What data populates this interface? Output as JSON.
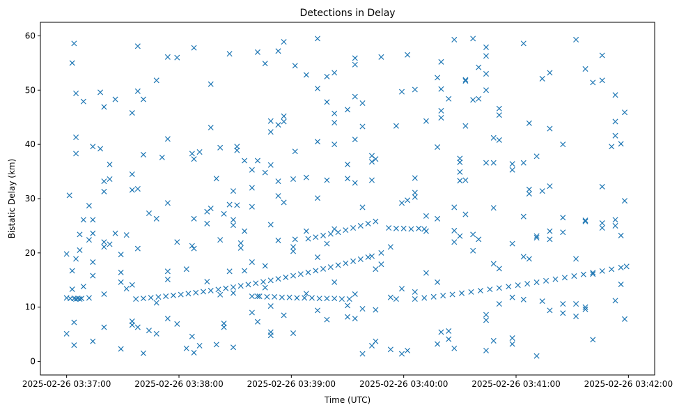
{
  "chart_data": {
    "type": "scatter",
    "title": "Detections in Delay",
    "xlabel": "Time (UTC)",
    "ylabel": "Bistatic Delay (km)",
    "x_units": "seconds after 2025-02-26 03:37:00",
    "xlim": [
      -14,
      314
    ],
    "ylim": [
      -2.5,
      62.5
    ],
    "grid": false,
    "marker": "x",
    "color": "#1f77b4",
    "x_ticks": [
      {
        "value": 0,
        "label": "2025-02-26 03:37:00"
      },
      {
        "value": 60,
        "label": "2025-02-26 03:38:00"
      },
      {
        "value": 120,
        "label": "2025-02-26 03:39:00"
      },
      {
        "value": 180,
        "label": "2025-02-26 03:40:00"
      },
      {
        "value": 240,
        "label": "2025-02-26 03:41:00"
      },
      {
        "value": 300,
        "label": "2025-02-26 03:42:00"
      }
    ],
    "y_ticks": [
      {
        "value": 0,
        "label": "0"
      },
      {
        "value": 10,
        "label": "10"
      },
      {
        "value": 20,
        "label": "20"
      },
      {
        "value": 30,
        "label": "30"
      },
      {
        "value": 40,
        "label": "40"
      },
      {
        "value": 50,
        "label": "50"
      },
      {
        "value": 60,
        "label": "60"
      }
    ],
    "track_points": [
      [
        0,
        11.7
      ],
      [
        2,
        11.6
      ],
      [
        4,
        11.6
      ],
      [
        5,
        11.5
      ],
      [
        6,
        11.6
      ],
      [
        7,
        11.5
      ],
      [
        8,
        11.6
      ],
      [
        37,
        11.5
      ],
      [
        41,
        11.61
      ],
      [
        45,
        11.74
      ],
      [
        49,
        11.87
      ],
      [
        53,
        12.01
      ],
      [
        57,
        12.16
      ],
      [
        61,
        12.32
      ],
      [
        65,
        12.49
      ],
      [
        69,
        12.67
      ],
      [
        73,
        12.86
      ],
      [
        77,
        13.05
      ],
      [
        81,
        13.25
      ],
      [
        85,
        13.47
      ],
      [
        89,
        13.69
      ],
      [
        93,
        13.92
      ],
      [
        97,
        14.16
      ],
      [
        101,
        14.41
      ],
      [
        105,
        14.67
      ],
      [
        109,
        14.93
      ],
      [
        113,
        15.21
      ],
      [
        117,
        15.49
      ],
      [
        121,
        15.79
      ],
      [
        125,
        16.09
      ],
      [
        129,
        16.4
      ],
      [
        133,
        16.72
      ],
      [
        137,
        17.05
      ],
      [
        141,
        17.39
      ],
      [
        145,
        17.74
      ],
      [
        149,
        18.09
      ],
      [
        153,
        18.46
      ],
      [
        157,
        18.83
      ],
      [
        161,
        19.21
      ],
      [
        163,
        19.4
      ],
      [
        129,
        22.6
      ],
      [
        133,
        22.9
      ],
      [
        137,
        23.2
      ],
      [
        141,
        23.5
      ],
      [
        145,
        23.8
      ],
      [
        149,
        24.2
      ],
      [
        153,
        24.6
      ],
      [
        157,
        25.0
      ],
      [
        161,
        25.4
      ],
      [
        165,
        25.8
      ],
      [
        172,
        24.6
      ],
      [
        176,
        24.5
      ],
      [
        180,
        24.5
      ],
      [
        184,
        24.4
      ],
      [
        188,
        24.5
      ],
      [
        191,
        24.4
      ],
      [
        99,
        12.0
      ],
      [
        103,
        12.0
      ],
      [
        107,
        11.9
      ],
      [
        111,
        11.9
      ],
      [
        115,
        11.8
      ],
      [
        119,
        11.8
      ],
      [
        123,
        11.7
      ],
      [
        127,
        11.7
      ],
      [
        131,
        11.7
      ],
      [
        135,
        11.6
      ],
      [
        139,
        11.6
      ],
      [
        143,
        11.6
      ],
      [
        147,
        11.5
      ],
      [
        151,
        11.5
      ],
      [
        186,
        11.5
      ],
      [
        191,
        11.7
      ],
      [
        196,
        11.91
      ],
      [
        201,
        12.12
      ],
      [
        206,
        12.34
      ],
      [
        211,
        12.57
      ],
      [
        216,
        12.8
      ],
      [
        221,
        13.04
      ],
      [
        226,
        13.28
      ],
      [
        231,
        13.53
      ],
      [
        236,
        13.78
      ],
      [
        241,
        14.05
      ],
      [
        246,
        14.31
      ],
      [
        251,
        14.58
      ],
      [
        256,
        14.86
      ],
      [
        261,
        15.15
      ],
      [
        266,
        15.44
      ],
      [
        271,
        15.73
      ],
      [
        276,
        16.03
      ],
      [
        281,
        16.35
      ],
      [
        286,
        16.66
      ],
      [
        291,
        16.98
      ],
      [
        296,
        17.3
      ],
      [
        299,
        17.5
      ]
    ],
    "scatter_columns": [
      [
        0,
        [
          19.8,
          5.1
        ]
      ],
      [
        1.5,
        [
          30.6
        ]
      ],
      [
        3,
        [
          55,
          16.7,
          13.3
        ]
      ],
      [
        4,
        [
          58.6,
          7.2,
          3.0
        ]
      ],
      [
        5,
        [
          49.4,
          41.3,
          38.3,
          18.9
        ]
      ],
      [
        7,
        [
          20.5,
          23.4
        ]
      ],
      [
        9,
        [
          47.9,
          26.1,
          13.8
        ]
      ],
      [
        12,
        [
          28.7,
          22.4,
          11.7
        ]
      ],
      [
        14,
        [
          39.6,
          26.1,
          23.6,
          18.3,
          15.8,
          3.7
        ]
      ],
      [
        18,
        [
          39.2,
          49.6
        ]
      ],
      [
        20,
        [
          46.9,
          33.2,
          31.3,
          22,
          21.1,
          6.3,
          12.4
        ]
      ],
      [
        23,
        [
          36.3,
          33.6,
          21.6
        ]
      ],
      [
        26,
        [
          48.3,
          23.6
        ]
      ],
      [
        29,
        [
          19.7,
          16.4,
          14.6,
          2.3
        ]
      ],
      [
        32,
        [
          23.3,
          13.4
        ]
      ],
      [
        35,
        [
          45.8,
          34.5,
          31.6,
          14.1,
          7.4,
          6.7
        ]
      ],
      [
        38,
        [
          58.1,
          31.8,
          49.8,
          20.8,
          6.3
        ]
      ],
      [
        41,
        [
          48.3,
          38.1,
          1.5
        ]
      ],
      [
        44,
        [
          27.3,
          5.7
        ]
      ],
      [
        48,
        [
          51.8,
          26.3,
          5.1,
          10.8
        ]
      ],
      [
        51,
        [
          37.6
        ]
      ],
      [
        54,
        [
          56.1,
          41.0,
          29.2,
          16.6,
          15.1,
          7.9
        ]
      ],
      [
        59,
        [
          56.0,
          22.0,
          6.9
        ]
      ],
      [
        64,
        [
          17.0,
          2.4
        ]
      ],
      [
        67,
        [
          38.3,
          21.3,
          4.6
        ]
      ],
      [
        68,
        [
          57.8,
          37.3,
          26.3,
          20.8,
          1.6
        ]
      ],
      [
        71,
        [
          38.6,
          2.9
        ]
      ],
      [
        75,
        [
          27.6,
          25.4,
          14.7
        ]
      ],
      [
        77,
        [
          51.1,
          28.2,
          43.1
        ]
      ],
      [
        80,
        [
          33.7,
          3.1
        ]
      ],
      [
        82,
        [
          39.4,
          22.4,
          12.3
        ]
      ],
      [
        84,
        [
          27.2,
          7.0,
          6.3
        ]
      ],
      [
        87,
        [
          56.7,
          28.9,
          16.6
        ]
      ],
      [
        89,
        [
          31.4,
          26.1,
          25.1,
          12.6,
          2.6
        ]
      ],
      [
        91,
        [
          39.6,
          28.8,
          38.9
        ]
      ],
      [
        93,
        [
          21.8,
          20.9
        ]
      ],
      [
        95,
        [
          37.0,
          24.0,
          16.7
        ]
      ],
      [
        99,
        [
          35.3,
          32.0,
          28.5,
          18.3,
          9.0
        ]
      ],
      [
        102,
        [
          57.0,
          37.0,
          12.0,
          7.3
        ]
      ],
      [
        106,
        [
          54.9,
          34.8,
          17.6,
          13.6
        ]
      ],
      [
        109,
        [
          44.3,
          42.3,
          36.2,
          25.2,
          10.2,
          5.4,
          4.8
        ]
      ],
      [
        113,
        [
          57.2,
          43.6,
          30.5,
          33.2,
          22.3
        ]
      ],
      [
        116,
        [
          58.9,
          45.2,
          44.2,
          29.3,
          8.5
        ]
      ],
      [
        121,
        [
          33.6,
          20.3,
          21.1,
          5.2
        ]
      ],
      [
        122,
        [
          54.5,
          38.7,
          22.5
        ]
      ],
      [
        128,
        [
          52.8,
          33.9,
          24.0,
          12.5
        ]
      ],
      [
        134,
        [
          59.5,
          50.3,
          40.5,
          30.1,
          9.4,
          19.2
        ]
      ],
      [
        139,
        [
          52.5,
          47.8,
          33.4,
          21.7,
          7.7
        ]
      ],
      [
        143,
        [
          53.2,
          45.7,
          44.0,
          40.0,
          24.4,
          14.6
        ]
      ],
      [
        150,
        [
          46.4,
          36.3,
          33.7,
          8.2,
          10.3
        ]
      ],
      [
        154,
        [
          55.9,
          54.7,
          48.8,
          40.9,
          32.9,
          12.4,
          7.9
        ]
      ],
      [
        158,
        [
          47.6,
          43.3,
          28.4,
          9.7,
          1.4
        ]
      ],
      [
        163,
        [
          37.9,
          36.8,
          33.4,
          2.9
        ]
      ],
      [
        165,
        [
          37.3,
          17.0,
          3.7,
          9.5
        ]
      ],
      [
        168,
        [
          56.1,
          20.0,
          17.9
        ]
      ],
      [
        173,
        [
          2.2,
          11.8,
          21.1
        ]
      ],
      [
        176,
        [
          43.4,
          11.5
        ]
      ],
      [
        179,
        [
          49.7,
          29.2,
          13.4,
          1.4
        ]
      ],
      [
        182,
        [
          56.5,
          29.7,
          2.0
        ]
      ],
      [
        186,
        [
          50.1,
          31.1,
          33.8,
          30.3,
          12.8
        ]
      ],
      [
        192,
        [
          44.3,
          26.8,
          16.3,
          24.0
        ]
      ],
      [
        198,
        [
          39.5,
          52.3,
          26.3,
          14.6,
          3.2
        ]
      ],
      [
        200,
        [
          55.2,
          50.2,
          46.2,
          44.9,
          5.4
        ]
      ],
      [
        204,
        [
          48.4,
          4.1,
          5.6
        ]
      ],
      [
        207,
        [
          59.3,
          28.4,
          24.1,
          22.0,
          2.4
        ]
      ],
      [
        210,
        [
          37.4,
          36.7,
          34.9,
          33.3,
          23.1
        ]
      ],
      [
        213,
        [
          51.9,
          43.4,
          27.1,
          51.7,
          33.4
        ]
      ],
      [
        217,
        [
          59.5,
          48.2,
          23.4,
          20.4
        ]
      ],
      [
        220,
        [
          48.4,
          54.2,
          22.5
        ]
      ],
      [
        224,
        [
          57.9,
          56.3,
          50.0,
          53.0,
          36.6,
          8.6,
          7.6,
          2.0
        ]
      ],
      [
        228,
        [
          41.2,
          36.6,
          28.3,
          18.0,
          3.8
        ]
      ],
      [
        231,
        [
          46.6,
          45.4,
          40.8,
          17.1,
          10.6
        ]
      ],
      [
        238,
        [
          36.4,
          35.3,
          21.7,
          4.3,
          3.2,
          11.8
        ]
      ],
      [
        244,
        [
          58.6,
          36.6,
          26.7,
          19.3,
          11.4
        ]
      ],
      [
        247,
        [
          43.9,
          31.7,
          30.9,
          18.9
        ]
      ],
      [
        251,
        [
          37.8,
          23.1,
          22.8,
          1.0
        ]
      ],
      [
        254,
        [
          52.1,
          31.4,
          11.1
        ]
      ],
      [
        258,
        [
          53.2,
          42.9,
          32.3,
          24.0,
          22.5,
          9.4
        ]
      ],
      [
        265,
        [
          40.0,
          26.5,
          23.8,
          10.6,
          8.9
        ]
      ],
      [
        272,
        [
          59.3,
          18.9,
          10.6,
          8.3
        ]
      ],
      [
        277,
        [
          53.9,
          26.0,
          25.8,
          10.0,
          9.6
        ]
      ],
      [
        281,
        [
          51.4,
          16.1,
          4.0
        ]
      ],
      [
        286,
        [
          51.8,
          32.2,
          56.4,
          25.5,
          24.6
        ]
      ],
      [
        291,
        [
          39.6
        ]
      ],
      [
        293,
        [
          49.1,
          44.2,
          41.6,
          26.1,
          25.0,
          11.2
        ]
      ],
      [
        296,
        [
          40.1,
          23.2,
          14.2
        ]
      ],
      [
        298,
        [
          45.9,
          29.6,
          7.8
        ]
      ]
    ]
  }
}
